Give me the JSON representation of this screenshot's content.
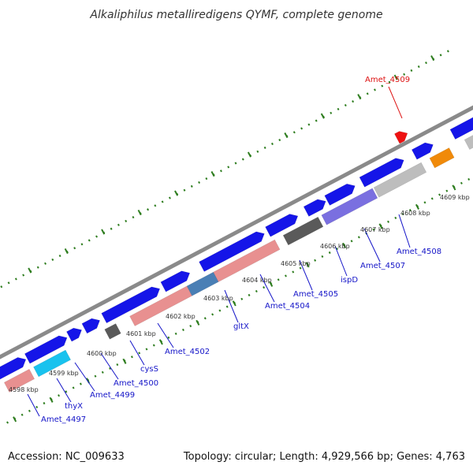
{
  "title": "Alkaliphilus metalliredigens QYMF, complete genome",
  "footer": {
    "accession": "Accession: NC_009633",
    "topology": "Topology: circular; Length: 4,929,566 bp; Genes: 4,763"
  },
  "colors": {
    "backbone": "#8a8a8a",
    "tick": "#2e7d1f",
    "forward": "#1515e8",
    "pink": "#e89090",
    "gray_light": "#bdbdbd",
    "gray_dark": "#5a5a5a",
    "cyan": "#19c2ee",
    "steel": "#4a7fb5",
    "purple": "#7a6fe0",
    "orange": "#f08a0a",
    "red": "#ee1111",
    "label_blue": "#1414c8",
    "label_red": "#dd1111"
  },
  "kbp_labels": [
    "4598 kbp",
    "4599 kbp",
    "4600 kbp",
    "4601 kbp",
    "4602 kbp",
    "4603 kbp",
    "4604 kbp",
    "4605 kbp",
    "4606 kbp",
    "4607 kbp",
    "4608 kbp",
    "4609 kbp"
  ],
  "gene_labels": [
    {
      "text": "Amet_4497",
      "color": "label_blue"
    },
    {
      "text": "thyX",
      "color": "label_blue"
    },
    {
      "text": "Amet_4499",
      "color": "label_blue"
    },
    {
      "text": "Amet_4500",
      "color": "label_blue"
    },
    {
      "text": "cysS",
      "color": "label_blue"
    },
    {
      "text": "Amet_4502",
      "color": "label_blue"
    },
    {
      "text": "gltX",
      "color": "label_blue"
    },
    {
      "text": "Amet_4504",
      "color": "label_blue"
    },
    {
      "text": "Amet_4505",
      "color": "label_blue"
    },
    {
      "text": "ispD",
      "color": "label_blue"
    },
    {
      "text": "Amet_4507",
      "color": "label_blue"
    },
    {
      "text": "Amet_4508",
      "color": "label_blue"
    },
    {
      "text": "Amet_4509",
      "color": "label_red"
    }
  ]
}
